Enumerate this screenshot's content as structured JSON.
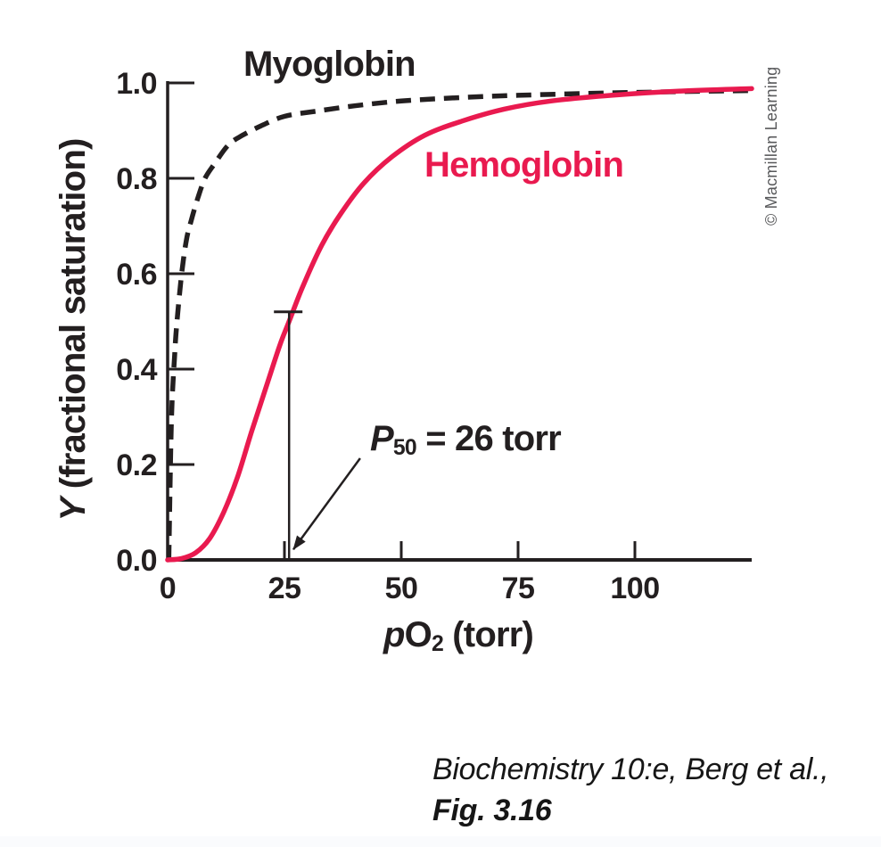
{
  "figure": {
    "credit": "© Macmillan Learning",
    "caption": {
      "line1": "Biochemistry 10:e, Berg et al.,",
      "line2": "Fig. 3.16"
    }
  },
  "chart_data": {
    "type": "line",
    "title": "",
    "xlabel_parts": {
      "italic": "p",
      "main": "O",
      "sub": "2",
      "rest": " (torr)"
    },
    "ylabel_parts": {
      "italic": "Y",
      "rest": " (fractional saturation)"
    },
    "xlim": [
      0,
      125
    ],
    "ylim": [
      0,
      1.0
    ],
    "grid": false,
    "legend": "inline-curve-labels",
    "ink_color": "#231f20",
    "x_ticks": [
      {
        "label": "0",
        "value": 0
      },
      {
        "label": "25",
        "value": 25
      },
      {
        "label": "50",
        "value": 50
      },
      {
        "label": "75",
        "value": 75
      },
      {
        "label": "100",
        "value": 100
      }
    ],
    "y_ticks": [
      {
        "label": "0.0",
        "value": 0
      },
      {
        "label": "0.2",
        "value": 0.2
      },
      {
        "label": "0.4",
        "value": 0.4
      },
      {
        "label": "0.6",
        "value": 0.6
      },
      {
        "label": "0.8",
        "value": 0.8
      },
      {
        "label": "1.0",
        "value": 1.0
      }
    ],
    "series": [
      {
        "name": "Myoglobin",
        "style": "dashed",
        "color": "#231f20",
        "points": [
          [
            0.25,
            0
          ],
          [
            0.8,
            0.29
          ],
          [
            1.5,
            0.43
          ],
          [
            2,
            0.5
          ],
          [
            3,
            0.6
          ],
          [
            4,
            0.67
          ],
          [
            5,
            0.71
          ],
          [
            6.5,
            0.76
          ],
          [
            8,
            0.8
          ],
          [
            10,
            0.83
          ],
          [
            13,
            0.87
          ],
          [
            16,
            0.89
          ],
          [
            20,
            0.91
          ],
          [
            25,
            0.93
          ],
          [
            32,
            0.941
          ],
          [
            40,
            0.952
          ],
          [
            50,
            0.962
          ],
          [
            62,
            0.969
          ],
          [
            75,
            0.974
          ],
          [
            90,
            0.978
          ],
          [
            105,
            0.981
          ],
          [
            125,
            0.984
          ]
        ]
      },
      {
        "name": "Hemoglobin",
        "style": "solid",
        "color": "#e91a4f",
        "points": [
          [
            0,
            0
          ],
          [
            3,
            0.003
          ],
          [
            6,
            0.015
          ],
          [
            9,
            0.045
          ],
          [
            12,
            0.1
          ],
          [
            15,
            0.175
          ],
          [
            18,
            0.27
          ],
          [
            21,
            0.36
          ],
          [
            24,
            0.45
          ],
          [
            26,
            0.5
          ],
          [
            29,
            0.575
          ],
          [
            33,
            0.66
          ],
          [
            37,
            0.725
          ],
          [
            42,
            0.79
          ],
          [
            48,
            0.845
          ],
          [
            55,
            0.89
          ],
          [
            63,
            0.92
          ],
          [
            72,
            0.945
          ],
          [
            82,
            0.962
          ],
          [
            95,
            0.974
          ],
          [
            110,
            0.983
          ],
          [
            125,
            0.988
          ]
        ]
      }
    ],
    "annotation": {
      "symbol": "P",
      "symbol_sub": "50",
      "text": " = 26 torr",
      "x": 26,
      "marker_top": 0.52,
      "arrow": {
        "from_p": 41.2,
        "from_y": 0.213,
        "to_p": 26.9,
        "to_y": 0.022
      }
    }
  }
}
